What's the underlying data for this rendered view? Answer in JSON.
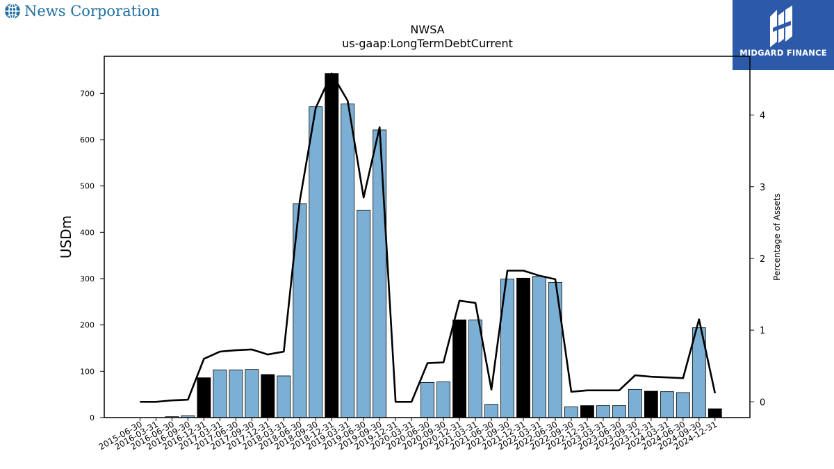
{
  "header": {
    "company_name": "News Corporation",
    "badge_text": "MIDGARD FINANCE",
    "brand_color": "#1f6fa0",
    "badge_color": "#2d5aa8"
  },
  "chart_data": {
    "type": "bar",
    "title": "NWSA",
    "subtitle": "us-gaap:LongTermDebtCurrent",
    "ylabel": "USDm",
    "y2label": "Percentage of Assets",
    "ylim": [
      0,
      780
    ],
    "y2lim": [
      -0.22,
      4.82
    ],
    "yticks": [
      0,
      100,
      200,
      300,
      400,
      500,
      600,
      700
    ],
    "y2ticks": [
      0,
      1,
      2,
      3,
      4
    ],
    "grid": false,
    "bar_color": "#7bafd4",
    "highlight_color": "#000000",
    "categories": [
      "2015-06-30",
      "2016-03-31",
      "2016-06-30",
      "2016-09-30",
      "2016-12-31",
      "2017-03-31",
      "2017-06-30",
      "2017-09-30",
      "2017-12-31",
      "2018-03-31",
      "2018-06-30",
      "2018-09-30",
      "2018-12-31",
      "2019-03-31",
      "2019-06-30",
      "2019-09-30",
      "2019-12-31",
      "2020-03-31",
      "2020-06-30",
      "2020-09-30",
      "2020-12-31",
      "2021-03-31",
      "2021-06-30",
      "2021-09-30",
      "2021-12-31",
      "2022-03-31",
      "2022-06-30",
      "2022-09-30",
      "2022-12-31",
      "2023-03-31",
      "2023-06-30",
      "2023-09-30",
      "2023-12-31",
      "2024-03-31",
      "2024-06-30",
      "2024-09-30",
      "2024-12-31"
    ],
    "series": [
      {
        "type": "bar",
        "values": [
          0,
          0,
          2,
          4,
          86,
          103,
          103,
          104,
          93,
          90,
          462,
          671,
          743,
          677,
          448,
          621,
          0,
          0,
          76,
          77,
          211,
          211,
          28,
          299,
          301,
          305,
          292,
          23,
          26,
          26,
          26,
          61,
          57,
          56,
          54,
          194,
          19
        ],
        "highlight": [
          false,
          false,
          false,
          false,
          true,
          false,
          false,
          false,
          true,
          false,
          false,
          false,
          true,
          false,
          false,
          false,
          true,
          false,
          false,
          false,
          true,
          false,
          false,
          false,
          true,
          false,
          false,
          false,
          true,
          false,
          false,
          false,
          true,
          false,
          false,
          false,
          true
        ]
      },
      {
        "type": "line",
        "axis": "right",
        "color": "#000000",
        "values": [
          0.0,
          0.0,
          0.02,
          0.03,
          0.6,
          0.7,
          0.72,
          0.73,
          0.66,
          0.7,
          2.8,
          4.1,
          4.58,
          4.2,
          2.85,
          3.83,
          0.0,
          0.0,
          0.54,
          0.55,
          1.41,
          1.38,
          0.17,
          1.83,
          1.83,
          1.76,
          1.71,
          0.14,
          0.16,
          0.16,
          0.16,
          0.37,
          0.35,
          0.34,
          0.33,
          1.15,
          0.12
        ]
      }
    ]
  }
}
